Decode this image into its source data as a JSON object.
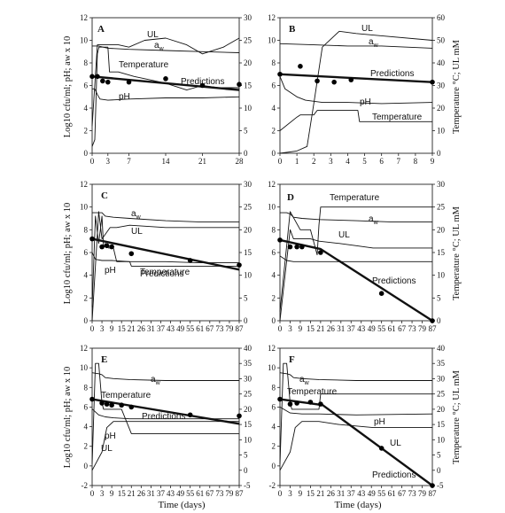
{
  "figure": {
    "left_axis_label": "Log10 cfu/ml; pH; aw x 10",
    "right_axis_label": "Temperature °C; UL mM",
    "x_axis_label": "Time (days)"
  },
  "chart_data": [
    {
      "type": "line",
      "panel": "A",
      "xticks": [
        "0",
        "3",
        "7",
        "14",
        "21",
        "28"
      ],
      "xlim": [
        0,
        28
      ],
      "yticks_left": [
        "0",
        "2",
        "4",
        "6",
        "8",
        "10",
        "12"
      ],
      "ylim_left": [
        0,
        12
      ],
      "yticks_right": [
        "0",
        "5",
        "10",
        "15",
        "20",
        "25",
        "30"
      ],
      "ylim_right": [
        0,
        30
      ],
      "series": [
        {
          "name": "UL",
          "axis": "right",
          "x": [
            0,
            1,
            3,
            5,
            7,
            10,
            14,
            18,
            21,
            25,
            28
          ],
          "y": [
            6,
            24,
            24,
            24,
            23.5,
            25,
            25.5,
            24,
            22,
            23.5,
            25.5
          ]
        },
        {
          "name": "aw",
          "axis": "left",
          "x": [
            0,
            1,
            1.2,
            3,
            7,
            14,
            21,
            28
          ],
          "y": [
            9.5,
            9.5,
            9.5,
            9.3,
            9.2,
            9.1,
            9.0,
            8.9
          ]
        },
        {
          "name": "Temperature",
          "axis": "right",
          "x": [
            0,
            0.5,
            1,
            1.3,
            2,
            3,
            3.3,
            5,
            8,
            10,
            14,
            18,
            21,
            24,
            28
          ],
          "y": [
            1.5,
            3,
            22,
            23.5,
            23.5,
            23.5,
            18,
            18,
            17,
            16.5,
            15.5,
            14,
            15,
            14.5,
            14.5
          ]
        },
        {
          "name": "pH",
          "axis": "left",
          "x": [
            0,
            0.5,
            1,
            1.5,
            3,
            7,
            14,
            21,
            28
          ],
          "y": [
            5.7,
            5.7,
            5.2,
            4.8,
            4.7,
            4.8,
            4.9,
            4.9,
            5.0
          ]
        },
        {
          "name": "Predictions",
          "axis": "left",
          "x": [
            0,
            28
          ],
          "y": [
            6.8,
            5.6
          ]
        }
      ],
      "points": {
        "x": [
          0,
          1,
          2,
          3,
          7,
          14,
          21,
          28
        ],
        "y": [
          6.8,
          6.8,
          6.4,
          6.3,
          6.3,
          6.6,
          6.0,
          6.1
        ]
      },
      "annotations": [
        "A",
        "UL",
        "aw",
        "Temperature",
        "Predictions",
        "pH"
      ]
    },
    {
      "type": "line",
      "panel": "B",
      "xticks": [
        "0",
        "1",
        "2",
        "3",
        "4",
        "5",
        "6",
        "7",
        "8",
        "9"
      ],
      "xlim": [
        0,
        9
      ],
      "yticks_left": [
        "0",
        "2",
        "4",
        "6",
        "8",
        "10",
        "12"
      ],
      "ylim_left": [
        0,
        12
      ],
      "yticks_right": [
        "0",
        "10",
        "20",
        "30",
        "40",
        "50",
        "60"
      ],
      "ylim_right": [
        0,
        60
      ],
      "series": [
        {
          "name": "UL",
          "axis": "right",
          "x": [
            0,
            1,
            1.6,
            2,
            2.5,
            3.5,
            4.5,
            6,
            9
          ],
          "y": [
            0,
            1,
            3,
            22,
            47,
            54,
            53,
            52,
            50
          ]
        },
        {
          "name": "aw",
          "axis": "left",
          "x": [
            0,
            2,
            4,
            6,
            9
          ],
          "y": [
            9.7,
            9.6,
            9.5,
            9.5,
            9.3
          ]
        },
        {
          "name": "Predictions",
          "axis": "left",
          "x": [
            0,
            9
          ],
          "y": [
            7.0,
            6.3
          ]
        },
        {
          "name": "pH",
          "axis": "left",
          "x": [
            0,
            0.3,
            1,
            1.5,
            2.5,
            4,
            6,
            9
          ],
          "y": [
            6.8,
            5.7,
            5.0,
            4.7,
            4.5,
            4.5,
            4.4,
            4.5
          ]
        },
        {
          "name": "Temperature",
          "axis": "right",
          "x": [
            0,
            1,
            1.2,
            2,
            2.2,
            3,
            4,
            4.6,
            4.7,
            6,
            9
          ],
          "y": [
            10,
            16,
            17,
            17,
            19,
            19,
            19,
            19,
            14,
            14,
            14
          ]
        }
      ],
      "points": {
        "x": [
          0,
          1.2,
          2.2,
          3.2,
          4.2,
          9
        ],
        "y": [
          7.0,
          7.7,
          6.4,
          6.3,
          6.5,
          6.3
        ]
      },
      "annotations": [
        "B",
        "UL",
        "aw",
        "Predictions",
        "pH",
        "Temperature"
      ]
    },
    {
      "type": "line",
      "panel": "C",
      "xticks": [
        "0",
        "3",
        "9",
        "15",
        "21",
        "26",
        "31",
        "37",
        "43",
        "49",
        "55",
        "61",
        "67",
        "73",
        "79",
        "87"
      ],
      "xlim": [
        0,
        87
      ],
      "yticks_left": [
        "0",
        "2",
        "4",
        "6",
        "8",
        "10",
        "12"
      ],
      "ylim_left": [
        0,
        12
      ],
      "yticks_right": [
        "0",
        "5",
        "10",
        "15",
        "20",
        "25",
        "30"
      ],
      "ylim_right": [
        0,
        30
      ],
      "series": [
        {
          "name": "aw",
          "axis": "left",
          "x": [
            0,
            2,
            3,
            5,
            10,
            20,
            40,
            60,
            87
          ],
          "y": [
            9.5,
            9.5,
            9.5,
            9.2,
            9.1,
            9.0,
            8.8,
            8.7,
            8.7
          ]
        },
        {
          "name": "UL",
          "axis": "right",
          "x": [
            0,
            2,
            3,
            5,
            8,
            12,
            20,
            40,
            60,
            87
          ],
          "y": [
            0,
            24,
            18,
            19,
            20.5,
            20.5,
            21,
            20.5,
            20.5,
            20.5
          ]
        },
        {
          "name": "Predictions",
          "axis": "left",
          "x": [
            0,
            87
          ],
          "y": [
            7.2,
            4.5
          ]
        },
        {
          "name": "pH",
          "axis": "left",
          "x": [
            0,
            1,
            3,
            5,
            9,
            20,
            40,
            60,
            87
          ],
          "y": [
            6.0,
            5.4,
            5.3,
            5.3,
            5.3,
            5.2,
            5.2,
            5.1,
            5.1
          ]
        },
        {
          "name": "Temperature",
          "axis": "right",
          "x": [
            0,
            1,
            2,
            3,
            4,
            5,
            7,
            10,
            12,
            20,
            21,
            30,
            87
          ],
          "y": [
            3,
            23,
            17,
            23,
            16,
            17,
            16,
            16,
            13,
            13,
            12,
            12,
            12
          ]
        }
      ],
      "points": {
        "x": [
          0,
          3,
          6,
          9,
          21,
          55,
          87
        ],
        "y": [
          7.2,
          6.5,
          6.6,
          6.5,
          5.9,
          5.3,
          4.9
        ]
      },
      "annotations": [
        "C",
        "aw",
        "UL",
        "Predictions",
        "pH",
        "Temperature"
      ]
    },
    {
      "type": "line",
      "panel": "D",
      "xticks": [
        "0",
        "3",
        "9",
        "15",
        "21",
        "26",
        "31",
        "37",
        "43",
        "49",
        "55",
        "61",
        "67",
        "73",
        "79",
        "87"
      ],
      "xlim": [
        0,
        87
      ],
      "yticks_left": [
        "0",
        "2",
        "4",
        "6",
        "8",
        "10",
        "12"
      ],
      "ylim_left": [
        0,
        12
      ],
      "yticks_right": [
        "0",
        "5",
        "10",
        "15",
        "20",
        "25",
        "30"
      ],
      "ylim_right": [
        0,
        30
      ],
      "series": [
        {
          "name": "Temperature",
          "axis": "right",
          "x": [
            0,
            3,
            9,
            15,
            19,
            20,
            21,
            30,
            60,
            87
          ],
          "y": [
            2,
            24,
            20,
            20,
            14.5,
            21,
            25,
            25,
            25,
            25
          ]
        },
        {
          "name": "aw",
          "axis": "left",
          "x": [
            0,
            2,
            3,
            5,
            10,
            20,
            40,
            60,
            87
          ],
          "y": [
            9.5,
            9.5,
            9.4,
            9.1,
            9.0,
            8.9,
            8.8,
            8.7,
            8.7
          ]
        },
        {
          "name": "UL",
          "axis": "right",
          "x": [
            0,
            3,
            5,
            10,
            15,
            20,
            30,
            40,
            50,
            60,
            87
          ],
          "y": [
            0,
            20,
            18,
            18,
            18,
            17.5,
            17,
            16.5,
            16,
            16,
            16
          ]
        },
        {
          "name": "Predictions",
          "axis": "left",
          "x": [
            0,
            21,
            87
          ],
          "y": [
            7.1,
            6.3,
            0.0
          ]
        },
        {
          "name": "pH",
          "axis": "left",
          "x": [
            0,
            2,
            5,
            15,
            30,
            60,
            87
          ],
          "y": [
            5.7,
            5.3,
            5.2,
            5.2,
            5.2,
            5.2,
            5.2
          ]
        }
      ],
      "points": {
        "x": [
          0,
          3,
          7,
          10,
          21,
          55,
          87
        ],
        "y": [
          7.1,
          6.5,
          6.5,
          6.5,
          6.0,
          2.4,
          0.0
        ]
      },
      "annotations": [
        "D",
        "Temperature",
        "aw",
        "UL",
        "Predictions"
      ]
    },
    {
      "type": "line",
      "panel": "E",
      "xticks": [
        "0",
        "3",
        "9",
        "15",
        "21",
        "26",
        "31",
        "37",
        "43",
        "49",
        "55",
        "61",
        "67",
        "73",
        "79",
        "87"
      ],
      "xlim": [
        0,
        87
      ],
      "yticks_left": [
        "-2",
        "0",
        "2",
        "4",
        "6",
        "8",
        "10",
        "12"
      ],
      "ylim_left": [
        -2,
        12
      ],
      "yticks_right": [
        "-5",
        "0",
        "5",
        "10",
        "15",
        "20",
        "25",
        "30",
        "35",
        "40"
      ],
      "ylim_right": [
        -5,
        40
      ],
      "series": [
        {
          "name": "aw",
          "axis": "left",
          "x": [
            0,
            2,
            3,
            5,
            10,
            20,
            40,
            60,
            87
          ],
          "y": [
            9.5,
            9.4,
            9.3,
            9.0,
            8.9,
            8.8,
            8.7,
            8.7,
            8.7
          ]
        },
        {
          "name": "Temperature",
          "axis": "right",
          "x": [
            0,
            1,
            2,
            3,
            4,
            5,
            8,
            15,
            21,
            30,
            60,
            87
          ],
          "y": [
            2,
            35,
            35,
            22,
            20,
            20,
            20,
            20,
            12,
            12,
            12,
            12
          ]
        },
        {
          "name": "Predictions",
          "axis": "left",
          "x": [
            0,
            87
          ],
          "y": [
            6.8,
            4.3
          ]
        },
        {
          "name": "pH",
          "axis": "left",
          "x": [
            0,
            2,
            5,
            10,
            20,
            40,
            60,
            87
          ],
          "y": [
            5.8,
            5.2,
            5.0,
            4.9,
            4.8,
            4.8,
            4.8,
            4.8
          ]
        },
        {
          "name": "UL",
          "axis": "right",
          "x": [
            0,
            3,
            6,
            10,
            20,
            40,
            87
          ],
          "y": [
            0,
            6,
            14,
            16,
            16,
            16,
            16
          ]
        }
      ],
      "points": {
        "x": [
          0,
          3,
          6,
          9,
          15,
          21,
          55,
          87
        ],
        "y": [
          6.8,
          6.4,
          6.3,
          6.2,
          6.2,
          6.0,
          5.2,
          5.1
        ]
      },
      "annotations": [
        "E",
        "aw",
        "Temperature",
        "Predictions",
        "pH",
        "UL"
      ]
    },
    {
      "type": "line",
      "panel": "F",
      "xticks": [
        "0",
        "3",
        "9",
        "15",
        "21",
        "26",
        "31",
        "37",
        "43",
        "49",
        "55",
        "61",
        "67",
        "73",
        "79",
        "87"
      ],
      "xlim": [
        0,
        87
      ],
      "yticks_left": [
        "-2",
        "0",
        "2",
        "4",
        "6",
        "8",
        "10",
        "12"
      ],
      "ylim_left": [
        -2,
        12
      ],
      "yticks_right": [
        "-5",
        "0",
        "5",
        "10",
        "15",
        "20",
        "25",
        "30",
        "35",
        "40"
      ],
      "ylim_right": [
        -5,
        40
      ],
      "series": [
        {
          "name": "aw",
          "axis": "left",
          "x": [
            0,
            2,
            3,
            5,
            10,
            20,
            40,
            60,
            87
          ],
          "y": [
            9.5,
            9.4,
            9.3,
            9.0,
            8.9,
            8.8,
            8.7,
            8.7,
            8.7
          ]
        },
        {
          "name": "Temperature",
          "axis": "right",
          "x": [
            0,
            1,
            2,
            3,
            4,
            5,
            10,
            20,
            21,
            87
          ],
          "y": [
            2,
            35,
            35,
            22,
            20,
            20,
            20,
            20,
            25,
            25
          ]
        },
        {
          "name": "pH",
          "axis": "left",
          "x": [
            0,
            3,
            10,
            20,
            40,
            87
          ],
          "y": [
            6.0,
            5.4,
            5.3,
            5.3,
            5.2,
            5.3
          ]
        },
        {
          "name": "UL",
          "axis": "right",
          "x": [
            0,
            3,
            6,
            10,
            20,
            30,
            50,
            70,
            87
          ],
          "y": [
            0,
            6,
            14,
            16,
            16,
            15,
            14,
            14,
            14
          ]
        },
        {
          "name": "Predictions",
          "axis": "left",
          "x": [
            0,
            22,
            87
          ],
          "y": [
            6.8,
            6.2,
            -2.0
          ]
        }
      ],
      "points": {
        "x": [
          0,
          3,
          7,
          15,
          21,
          55,
          87
        ],
        "y": [
          6.8,
          6.3,
          6.4,
          6.5,
          6.3,
          1.8,
          -2.0
        ]
      },
      "annotations": [
        "F",
        "aw",
        "Temperature",
        "pH",
        "UL",
        "Predictions"
      ]
    }
  ]
}
